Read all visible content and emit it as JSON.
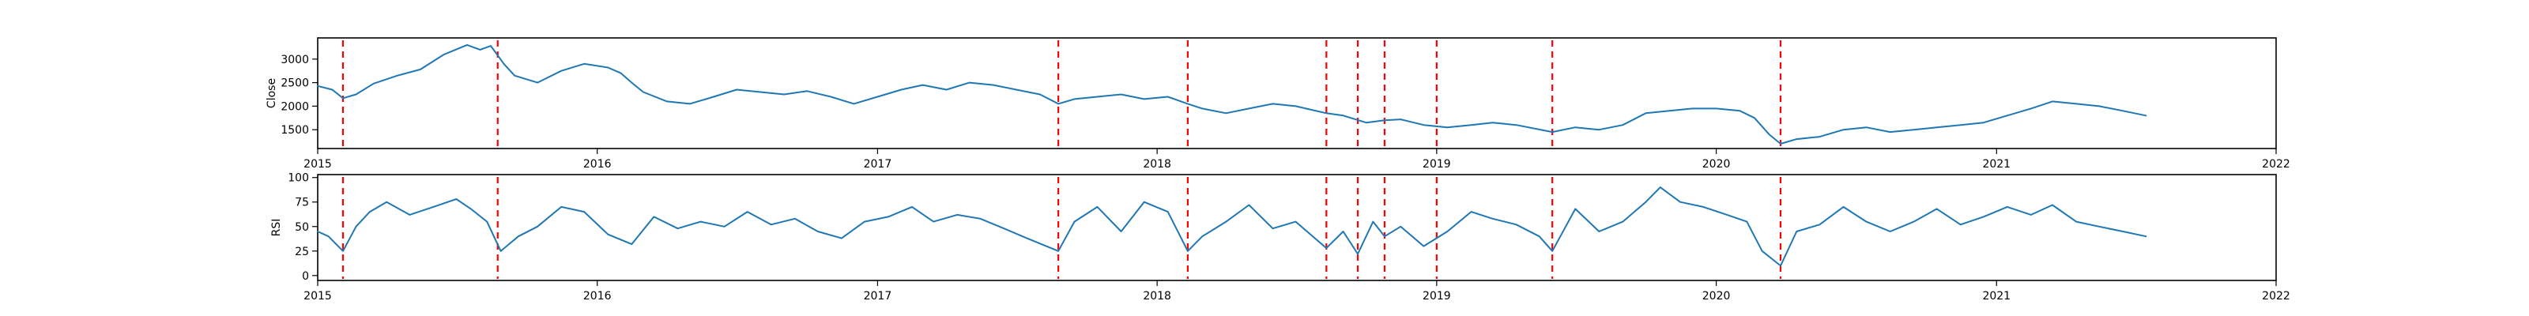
{
  "colors": {
    "series": "#1f77b4",
    "events": "#ff0000"
  },
  "chart_data": [
    {
      "type": "line",
      "title": "",
      "xlabel": "",
      "ylabel": "Close",
      "xlim": [
        "2015-01-01",
        "2022-01-01"
      ],
      "ylim": [
        1100,
        3450
      ],
      "x_ticks": [
        "2015",
        "2016",
        "2017",
        "2018",
        "2019",
        "2020",
        "2021",
        "2022"
      ],
      "y_ticks": [
        1500,
        2000,
        2500,
        3000
      ],
      "grid": false,
      "legend": "none",
      "series": [
        {
          "points": [
            [
              "2015-01-01",
              2430
            ],
            [
              "2015-01-20",
              2350
            ],
            [
              "2015-02-03",
              2170
            ],
            [
              "2015-02-20",
              2250
            ],
            [
              "2015-03-15",
              2480
            ],
            [
              "2015-04-15",
              2650
            ],
            [
              "2015-05-15",
              2780
            ],
            [
              "2015-06-15",
              3100
            ],
            [
              "2015-07-15",
              3300
            ],
            [
              "2015-08-01",
              3200
            ],
            [
              "2015-08-15",
              3280
            ],
            [
              "2015-09-01",
              2900
            ],
            [
              "2015-09-15",
              2650
            ],
            [
              "2015-10-15",
              2500
            ],
            [
              "2015-11-15",
              2750
            ],
            [
              "2015-12-15",
              2900
            ],
            [
              "2016-01-15",
              2820
            ],
            [
              "2016-02-01",
              2700
            ],
            [
              "2016-02-15",
              2500
            ],
            [
              "2016-03-01",
              2300
            ],
            [
              "2016-04-01",
              2100
            ],
            [
              "2016-05-01",
              2050
            ],
            [
              "2016-06-01",
              2200
            ],
            [
              "2016-07-01",
              2350
            ],
            [
              "2016-08-01",
              2300
            ],
            [
              "2016-09-01",
              2250
            ],
            [
              "2016-10-01",
              2320
            ],
            [
              "2016-11-01",
              2200
            ],
            [
              "2016-12-01",
              2050
            ],
            [
              "2017-01-01",
              2200
            ],
            [
              "2017-02-01",
              2350
            ],
            [
              "2017-03-01",
              2450
            ],
            [
              "2017-04-01",
              2350
            ],
            [
              "2017-05-01",
              2500
            ],
            [
              "2017-06-01",
              2450
            ],
            [
              "2017-07-01",
              2350
            ],
            [
              "2017-08-01",
              2250
            ],
            [
              "2017-08-25",
              2050
            ],
            [
              "2017-09-15",
              2150
            ],
            [
              "2017-10-15",
              2200
            ],
            [
              "2017-11-15",
              2250
            ],
            [
              "2017-12-15",
              2150
            ],
            [
              "2018-01-15",
              2200
            ],
            [
              "2018-02-10",
              2050
            ],
            [
              "2018-03-01",
              1950
            ],
            [
              "2018-04-01",
              1850
            ],
            [
              "2018-05-01",
              1950
            ],
            [
              "2018-06-01",
              2050
            ],
            [
              "2018-07-01",
              2000
            ],
            [
              "2018-08-10",
              1850
            ],
            [
              "2018-09-01",
              1800
            ],
            [
              "2018-10-01",
              1650
            ],
            [
              "2018-10-25",
              1700
            ],
            [
              "2018-11-15",
              1720
            ],
            [
              "2018-12-15",
              1600
            ],
            [
              "2019-01-15",
              1550
            ],
            [
              "2019-02-15",
              1600
            ],
            [
              "2019-03-15",
              1650
            ],
            [
              "2019-04-15",
              1600
            ],
            [
              "2019-06-01",
              1450
            ],
            [
              "2019-07-01",
              1550
            ],
            [
              "2019-08-01",
              1500
            ],
            [
              "2019-09-01",
              1600
            ],
            [
              "2019-10-01",
              1850
            ],
            [
              "2019-11-01",
              1900
            ],
            [
              "2019-12-01",
              1950
            ],
            [
              "2020-01-01",
              1950
            ],
            [
              "2020-02-01",
              1900
            ],
            [
              "2020-02-20",
              1750
            ],
            [
              "2020-03-10",
              1400
            ],
            [
              "2020-03-25",
              1200
            ],
            [
              "2020-04-15",
              1300
            ],
            [
              "2020-05-15",
              1350
            ],
            [
              "2020-06-15",
              1500
            ],
            [
              "2020-07-15",
              1550
            ],
            [
              "2020-08-15",
              1450
            ],
            [
              "2020-09-15",
              1500
            ],
            [
              "2020-10-15",
              1550
            ],
            [
              "2020-11-15",
              1600
            ],
            [
              "2020-12-15",
              1650
            ],
            [
              "2021-01-15",
              1800
            ],
            [
              "2021-02-15",
              1950
            ],
            [
              "2021-03-15",
              2100
            ],
            [
              "2021-04-15",
              2050
            ],
            [
              "2021-05-15",
              2000
            ],
            [
              "2021-06-15",
              1900
            ],
            [
              "2021-07-15",
              1800
            ]
          ]
        }
      ]
    },
    {
      "type": "line",
      "title": "",
      "xlabel": "",
      "ylabel": "RSI",
      "xlim": [
        "2015-01-01",
        "2022-01-01"
      ],
      "ylim": [
        -5,
        103
      ],
      "x_ticks": [
        "2015",
        "2016",
        "2017",
        "2018",
        "2019",
        "2020",
        "2021",
        "2022"
      ],
      "y_ticks": [
        0,
        25,
        50,
        75,
        100
      ],
      "grid": false,
      "legend": "none",
      "series": [
        {
          "points": [
            [
              "2015-01-01",
              45
            ],
            [
              "2015-01-15",
              40
            ],
            [
              "2015-02-03",
              25
            ],
            [
              "2015-02-20",
              50
            ],
            [
              "2015-03-10",
              65
            ],
            [
              "2015-04-01",
              75
            ],
            [
              "2015-05-01",
              62
            ],
            [
              "2015-06-01",
              70
            ],
            [
              "2015-07-01",
              78
            ],
            [
              "2015-07-20",
              68
            ],
            [
              "2015-08-10",
              55
            ],
            [
              "2015-08-28",
              25
            ],
            [
              "2015-09-20",
              40
            ],
            [
              "2015-10-15",
              50
            ],
            [
              "2015-11-15",
              70
            ],
            [
              "2015-12-15",
              65
            ],
            [
              "2016-01-15",
              42
            ],
            [
              "2016-02-15",
              32
            ],
            [
              "2016-03-15",
              60
            ],
            [
              "2016-04-15",
              48
            ],
            [
              "2016-05-15",
              55
            ],
            [
              "2016-06-15",
              50
            ],
            [
              "2016-07-15",
              65
            ],
            [
              "2016-08-15",
              52
            ],
            [
              "2016-09-15",
              58
            ],
            [
              "2016-10-15",
              45
            ],
            [
              "2016-11-15",
              38
            ],
            [
              "2016-12-15",
              55
            ],
            [
              "2017-01-15",
              60
            ],
            [
              "2017-02-15",
              70
            ],
            [
              "2017-03-15",
              55
            ],
            [
              "2017-04-15",
              62
            ],
            [
              "2017-05-15",
              58
            ],
            [
              "2017-06-15",
              48
            ],
            [
              "2017-07-15",
              38
            ],
            [
              "2017-08-25",
              25
            ],
            [
              "2017-09-15",
              55
            ],
            [
              "2017-10-15",
              70
            ],
            [
              "2017-11-15",
              45
            ],
            [
              "2017-12-15",
              75
            ],
            [
              "2018-01-15",
              65
            ],
            [
              "2018-02-10",
              25
            ],
            [
              "2018-03-01",
              40
            ],
            [
              "2018-04-01",
              55
            ],
            [
              "2018-05-01",
              72
            ],
            [
              "2018-06-01",
              48
            ],
            [
              "2018-07-01",
              55
            ],
            [
              "2018-08-10",
              28
            ],
            [
              "2018-09-01",
              45
            ],
            [
              "2018-09-20",
              22
            ],
            [
              "2018-10-10",
              55
            ],
            [
              "2018-10-25",
              40
            ],
            [
              "2018-11-15",
              50
            ],
            [
              "2018-12-15",
              30
            ],
            [
              "2019-01-15",
              45
            ],
            [
              "2019-02-15",
              65
            ],
            [
              "2019-03-15",
              58
            ],
            [
              "2019-04-15",
              52
            ],
            [
              "2019-05-15",
              40
            ],
            [
              "2019-06-01",
              25
            ],
            [
              "2019-07-01",
              68
            ],
            [
              "2019-08-01",
              45
            ],
            [
              "2019-09-01",
              55
            ],
            [
              "2019-10-01",
              75
            ],
            [
              "2019-10-20",
              90
            ],
            [
              "2019-11-15",
              75
            ],
            [
              "2019-12-15",
              70
            ],
            [
              "2020-01-15",
              62
            ],
            [
              "2020-02-10",
              55
            ],
            [
              "2020-03-01",
              25
            ],
            [
              "2020-03-25",
              10
            ],
            [
              "2020-04-15",
              45
            ],
            [
              "2020-05-15",
              52
            ],
            [
              "2020-06-15",
              70
            ],
            [
              "2020-07-15",
              55
            ],
            [
              "2020-08-15",
              45
            ],
            [
              "2020-09-15",
              55
            ],
            [
              "2020-10-15",
              68
            ],
            [
              "2020-11-15",
              52
            ],
            [
              "2020-12-15",
              60
            ],
            [
              "2021-01-15",
              70
            ],
            [
              "2021-02-15",
              62
            ],
            [
              "2021-03-15",
              72
            ],
            [
              "2021-04-15",
              55
            ],
            [
              "2021-05-15",
              50
            ],
            [
              "2021-06-15",
              45
            ],
            [
              "2021-07-15",
              40
            ]
          ]
        }
      ]
    }
  ],
  "event_dates": [
    "2015-02-03",
    "2015-08-24",
    "2017-08-25",
    "2018-02-10",
    "2018-08-10",
    "2018-09-20",
    "2018-10-25",
    "2019-01-01",
    "2019-06-01",
    "2020-03-25"
  ]
}
